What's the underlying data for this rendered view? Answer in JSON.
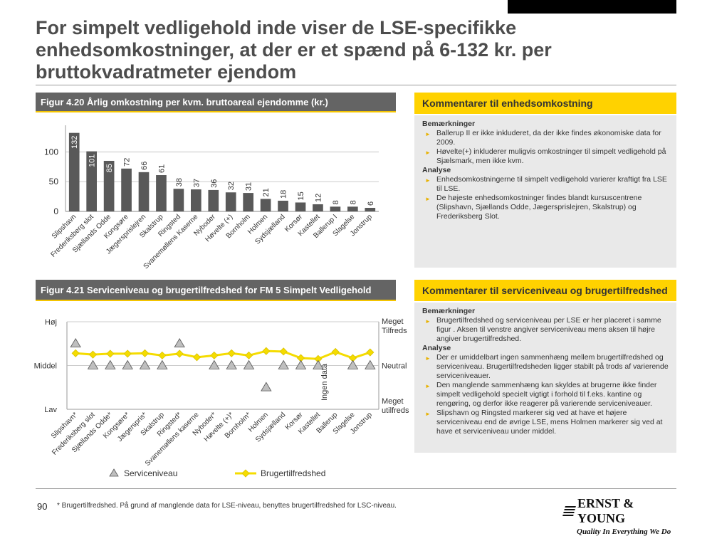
{
  "page": {
    "title": "For simpelt vedligehold inde viser de LSE-specifikke enhedsomkostninger, at der er et spænd på 6-132 kr. per bruttokvadratmeter ejendom",
    "page_number": "90",
    "footnote": "* Brugertilfredshed. På grund af manglende data for LSE-niveau, benyttes brugertilfredshed for LSC-niveau.",
    "logo_text": "ERNST & YOUNG",
    "tagline": "Quality In Everything We Do"
  },
  "colors": {
    "bar": "#595959",
    "line": "#f5dc00",
    "marker": "#bfbfbf",
    "header": "#646464",
    "accent": "#ffd200"
  },
  "fig1": {
    "title": "Figur 4.20 Årlig omkostning per kvm. bruttoareal ejendomme (kr.)"
  },
  "fig2": {
    "title": "Figur 4.21 Serviceniveau og brugertilfredshed for FM 5 Simpelt Vedligehold"
  },
  "comment1": {
    "title": "Kommentarer til enhedsomkostning",
    "sec1": "Bemærkninger",
    "items1": [
      "Ballerup II er ikke inkluderet, da der ikke findes økonomiske data for 2009.",
      "Høvelte(+) inkluderer muligvis omkostninger til simpelt vedligehold på Sjælsmark, men ikke kvm."
    ],
    "sec2": "Analyse",
    "items2": [
      "Enhedsomkostningerne til simpelt vedligehold varierer kraftigt fra LSE til LSE.",
      "De højeste enhedsomkostninger findes blandt kursuscentrene (Slipshavn, Sjællands Odde, Jægersprislejren, Skalstrup) og Frederiksberg Slot."
    ]
  },
  "comment2": {
    "title": "Kommentarer til serviceniveau og brugertilfredshed",
    "sec1": "Bemærkninger",
    "items1": [
      "Brugertilfredshed og serviceniveau per LSE er her placeret i samme figur . Aksen til venstre angiver serviceniveau mens aksen til højre angiver brugertilfredshed."
    ],
    "sec2": "Analyse",
    "items2": [
      "Der er umiddelbart ingen sammenhæng mellem brugertilfredshed og serviceniveau. Brugertilfredsheden ligger stabilt på trods af varierende serviceniveauer.",
      "Den manglende sammenhæng kan skyldes at brugerne ikke finder simpelt vedligehold specielt vigtigt i forhold til f.eks. kantine og rengøring, og derfor ikke reagerer på varierende serviceniveauer.",
      "Slipshavn og Ringsted markerer sig ved at have et højere serviceniveau end de øvrige LSE, mens Holmen markerer sig ved at have et serviceniveau under middel."
    ]
  },
  "chart_data": [
    {
      "type": "bar",
      "title": "Figur 4.20 Årlig omkostning per kvm. bruttoareal ejendomme (kr.)",
      "categories": [
        "Slipshavn",
        "Frederiksberg slot",
        "Sjællands Odde",
        "Kongsøre",
        "Jægersprislejren",
        "Skalstrup",
        "Ringsted",
        "Svanemøllens Kaserne",
        "Nyboder",
        "Høvelte (+)",
        "Bornholm",
        "Holmen",
        "Sydsjælland",
        "Korsør",
        "Kastellet",
        "Ballerup I",
        "Slagelse",
        "Jonstrup"
      ],
      "values": [
        132,
        101,
        85,
        72,
        66,
        61,
        38,
        37,
        36,
        32,
        31,
        21,
        18,
        15,
        12,
        8,
        8,
        6
      ],
      "yticks": [
        0,
        50,
        100
      ],
      "ylim": [
        0,
        140
      ]
    },
    {
      "type": "line",
      "title": "Figur 4.21 Serviceniveau og brugertilfredshed for FM 5 Simpelt Vedligehold",
      "categories": [
        "Slipshavn*",
        "Frederiksberg slot",
        "Sjællands Odde*",
        "Kongsøre*",
        "Jægerspris*",
        "Skalstrup",
        "Ringsted*",
        "Svanemøllens kaserne",
        "Nyboder*",
        "Høvelte (+)*",
        "Bornholm*",
        "Holmen",
        "Sydsjælland",
        "Korsør",
        "Kastellet",
        "Ballerup",
        "Slagelse",
        "Jonstrup"
      ],
      "left_axis": [
        "Høj",
        "Middel",
        "Lav"
      ],
      "right_axis": [
        "Meget Tilfreds",
        "Neutral",
        "Meget utilfreds"
      ],
      "annotation": "Ingen data",
      "series": [
        {
          "name": "Serviceniveau",
          "marker": "triangle",
          "values": [
            1.5,
            1,
            1,
            1,
            1,
            1,
            1.5,
            null,
            1,
            1,
            1,
            0.5,
            1,
            1,
            1,
            null,
            1,
            1
          ]
        },
        {
          "name": "Brugertilfredshed",
          "marker": "diamond",
          "values": [
            1.28,
            1.25,
            1.27,
            1.27,
            1.28,
            1.23,
            1.27,
            1.19,
            1.23,
            1.28,
            1.23,
            1.33,
            1.32,
            1.17,
            1.15,
            1.31,
            1.17,
            1.3
          ]
        }
      ],
      "ylim": [
        0,
        2
      ]
    }
  ]
}
